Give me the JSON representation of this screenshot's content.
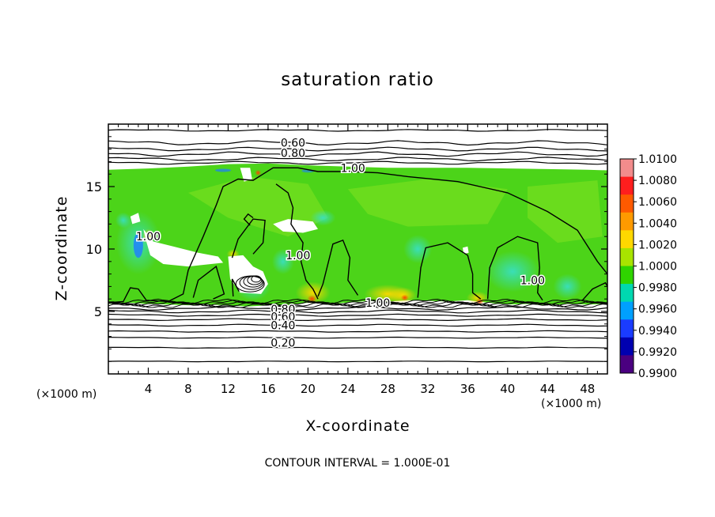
{
  "chart_data": {
    "type": "heatmap",
    "title": "saturation ratio",
    "xlabel": "X-coordinate",
    "ylabel": "Z-coordinate",
    "x_unit_label": "(×1000 m)",
    "footnote": "CONTOUR INTERVAL = 1.000E-01",
    "xlim": [
      0,
      50
    ],
    "ylim": [
      0,
      20
    ],
    "x_ticks": [
      4,
      8,
      12,
      16,
      20,
      24,
      28,
      32,
      36,
      40,
      44,
      48
    ],
    "y_ticks": [
      5,
      10,
      15
    ],
    "colorbar": {
      "ticks": [
        "1.0100",
        "1.0080",
        "1.0060",
        "1.0040",
        "1.0020",
        "1.0000",
        "0.9980",
        "0.9960",
        "0.9940",
        "0.9920",
        "0.9900"
      ],
      "colors": [
        "#f28c8c",
        "#ff1e1e",
        "#ff5a00",
        "#ff9a00",
        "#ffd800",
        "#a8e400",
        "#2fd400",
        "#00d8b0",
        "#00a0ff",
        "#1a3cff",
        "#0000b0",
        "#4a0080"
      ]
    },
    "contour_lines": [
      {
        "label": "0.60",
        "z": 18.5,
        "x": 18.5
      },
      {
        "label": "0.80",
        "z": 17.7,
        "x": 18.5
      },
      {
        "label": "1.00",
        "z": 16.5,
        "x": 24.5
      },
      {
        "label": "1.00",
        "z": 9.5,
        "x": 19.0
      },
      {
        "label": "1.00",
        "z": 11.0,
        "x": 4.0
      },
      {
        "label": "1.00",
        "z": 5.7,
        "x": 27.0
      },
      {
        "label": "1.00",
        "z": 7.5,
        "x": 42.5
      },
      {
        "label": "0.80",
        "z": 5.2,
        "x": 17.5
      },
      {
        "label": "0.60",
        "z": 4.6,
        "x": 17.5
      },
      {
        "label": "0.40",
        "z": 3.9,
        "x": 17.5
      },
      {
        "label": "0.20",
        "z": 2.5,
        "x": 17.5
      }
    ],
    "cloud_layer": {
      "z_bottom": 5.5,
      "z_top": 16.3,
      "dominant_value": 1.0015
    }
  }
}
